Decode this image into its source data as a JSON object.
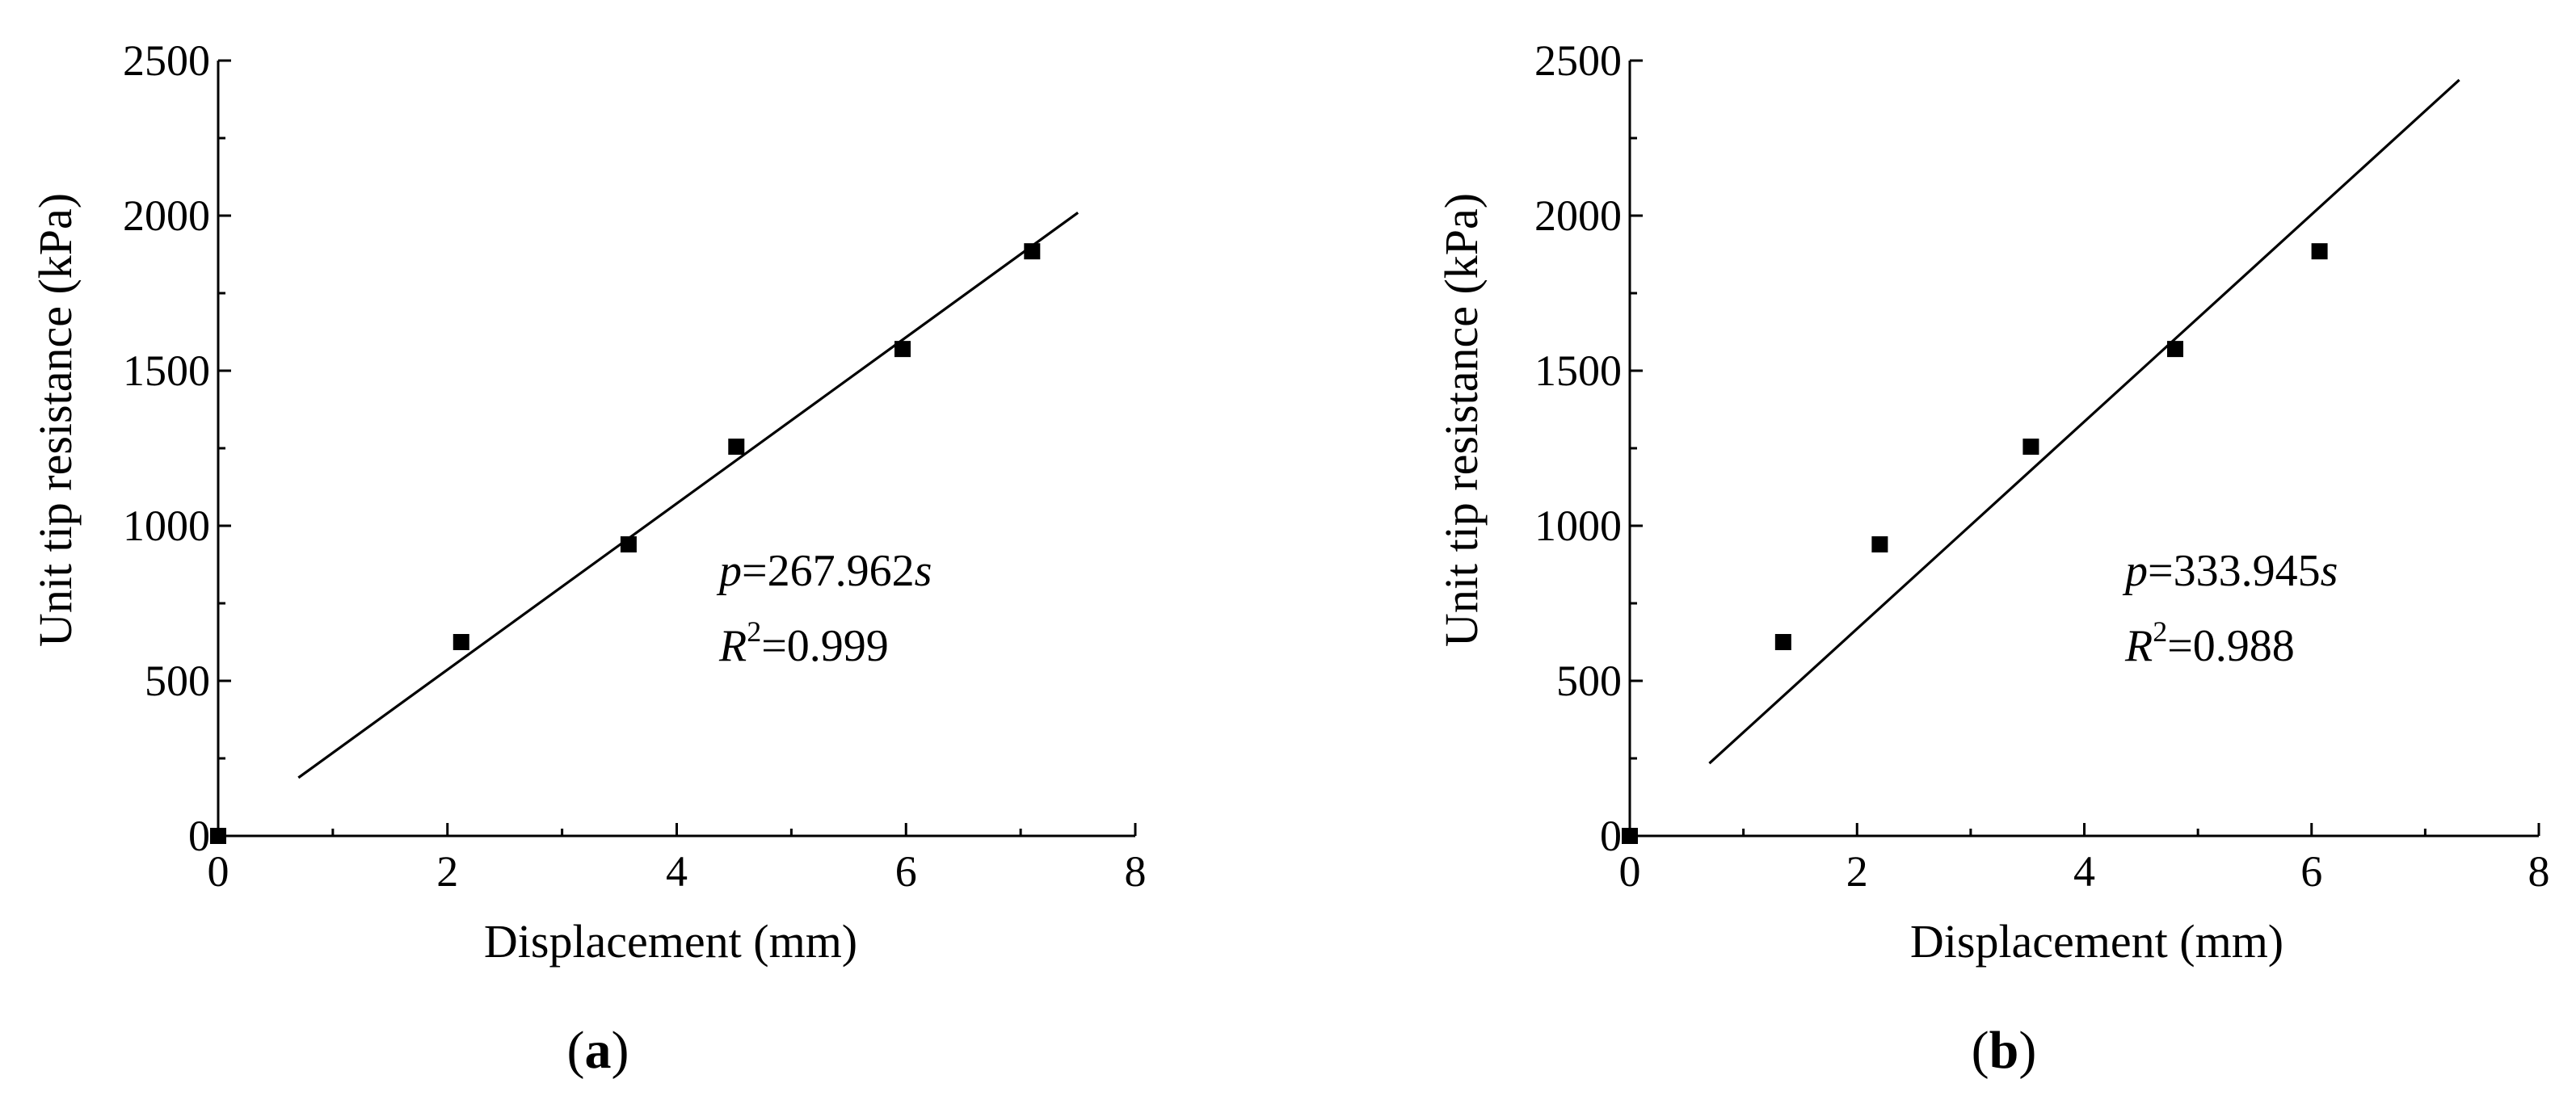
{
  "chart_data": [
    {
      "panel": "a",
      "type": "scatter",
      "panel_label": "a",
      "xlabel": "Displacement (mm)",
      "ylabel": "Unit tip resistance (kPa)",
      "xlim": [
        0,
        8
      ],
      "ylim": [
        0,
        2500
      ],
      "xticks": [
        0,
        2,
        4,
        6,
        8
      ],
      "yticks": [
        0,
        500,
        1000,
        1500,
        2000,
        2500
      ],
      "xtick_labels": [
        "0",
        "2",
        "4",
        "6",
        "8"
      ],
      "ytick_labels": [
        "0",
        "500",
        "1000",
        "1500",
        "2000",
        "2500"
      ],
      "points": [
        {
          "x": 0.0,
          "y": 0
        },
        {
          "x": 2.12,
          "y": 625
        },
        {
          "x": 3.58,
          "y": 940
        },
        {
          "x": 4.52,
          "y": 1255
        },
        {
          "x": 5.97,
          "y": 1570
        },
        {
          "x": 7.1,
          "y": 1885
        }
      ],
      "fit": {
        "equation_var": "p",
        "equation_value": "=267.962",
        "equation_s": "s",
        "coef": 267.962,
        "x_range": [
          0.7,
          7.5
        ],
        "r2_label": "R",
        "r2_sup": "2",
        "r2_value": "=0.999"
      }
    },
    {
      "panel": "b",
      "type": "scatter",
      "panel_label": "b",
      "xlabel": "Displacement (mm)",
      "ylabel": "Unit tip resistance (kPa)",
      "xlim": [
        0,
        8
      ],
      "ylim": [
        0,
        2500
      ],
      "xticks": [
        0,
        2,
        4,
        6,
        8
      ],
      "yticks": [
        0,
        500,
        1000,
        1500,
        2000,
        2500
      ],
      "xtick_labels": [
        "0",
        "2",
        "4",
        "6",
        "8"
      ],
      "ytick_labels": [
        "0",
        "500",
        "1000",
        "1500",
        "2000",
        "2500"
      ],
      "points": [
        {
          "x": 0.0,
          "y": 0
        },
        {
          "x": 1.35,
          "y": 625
        },
        {
          "x": 2.2,
          "y": 940
        },
        {
          "x": 3.53,
          "y": 1255
        },
        {
          "x": 4.8,
          "y": 1570
        },
        {
          "x": 6.07,
          "y": 1885
        }
      ],
      "fit": {
        "equation_var": "p",
        "equation_value": "=333.945",
        "equation_s": "s",
        "coef": 333.945,
        "x_range": [
          0.7,
          7.3
        ],
        "r2_label": "R",
        "r2_sup": "2",
        "r2_value": "=0.988"
      }
    }
  ]
}
